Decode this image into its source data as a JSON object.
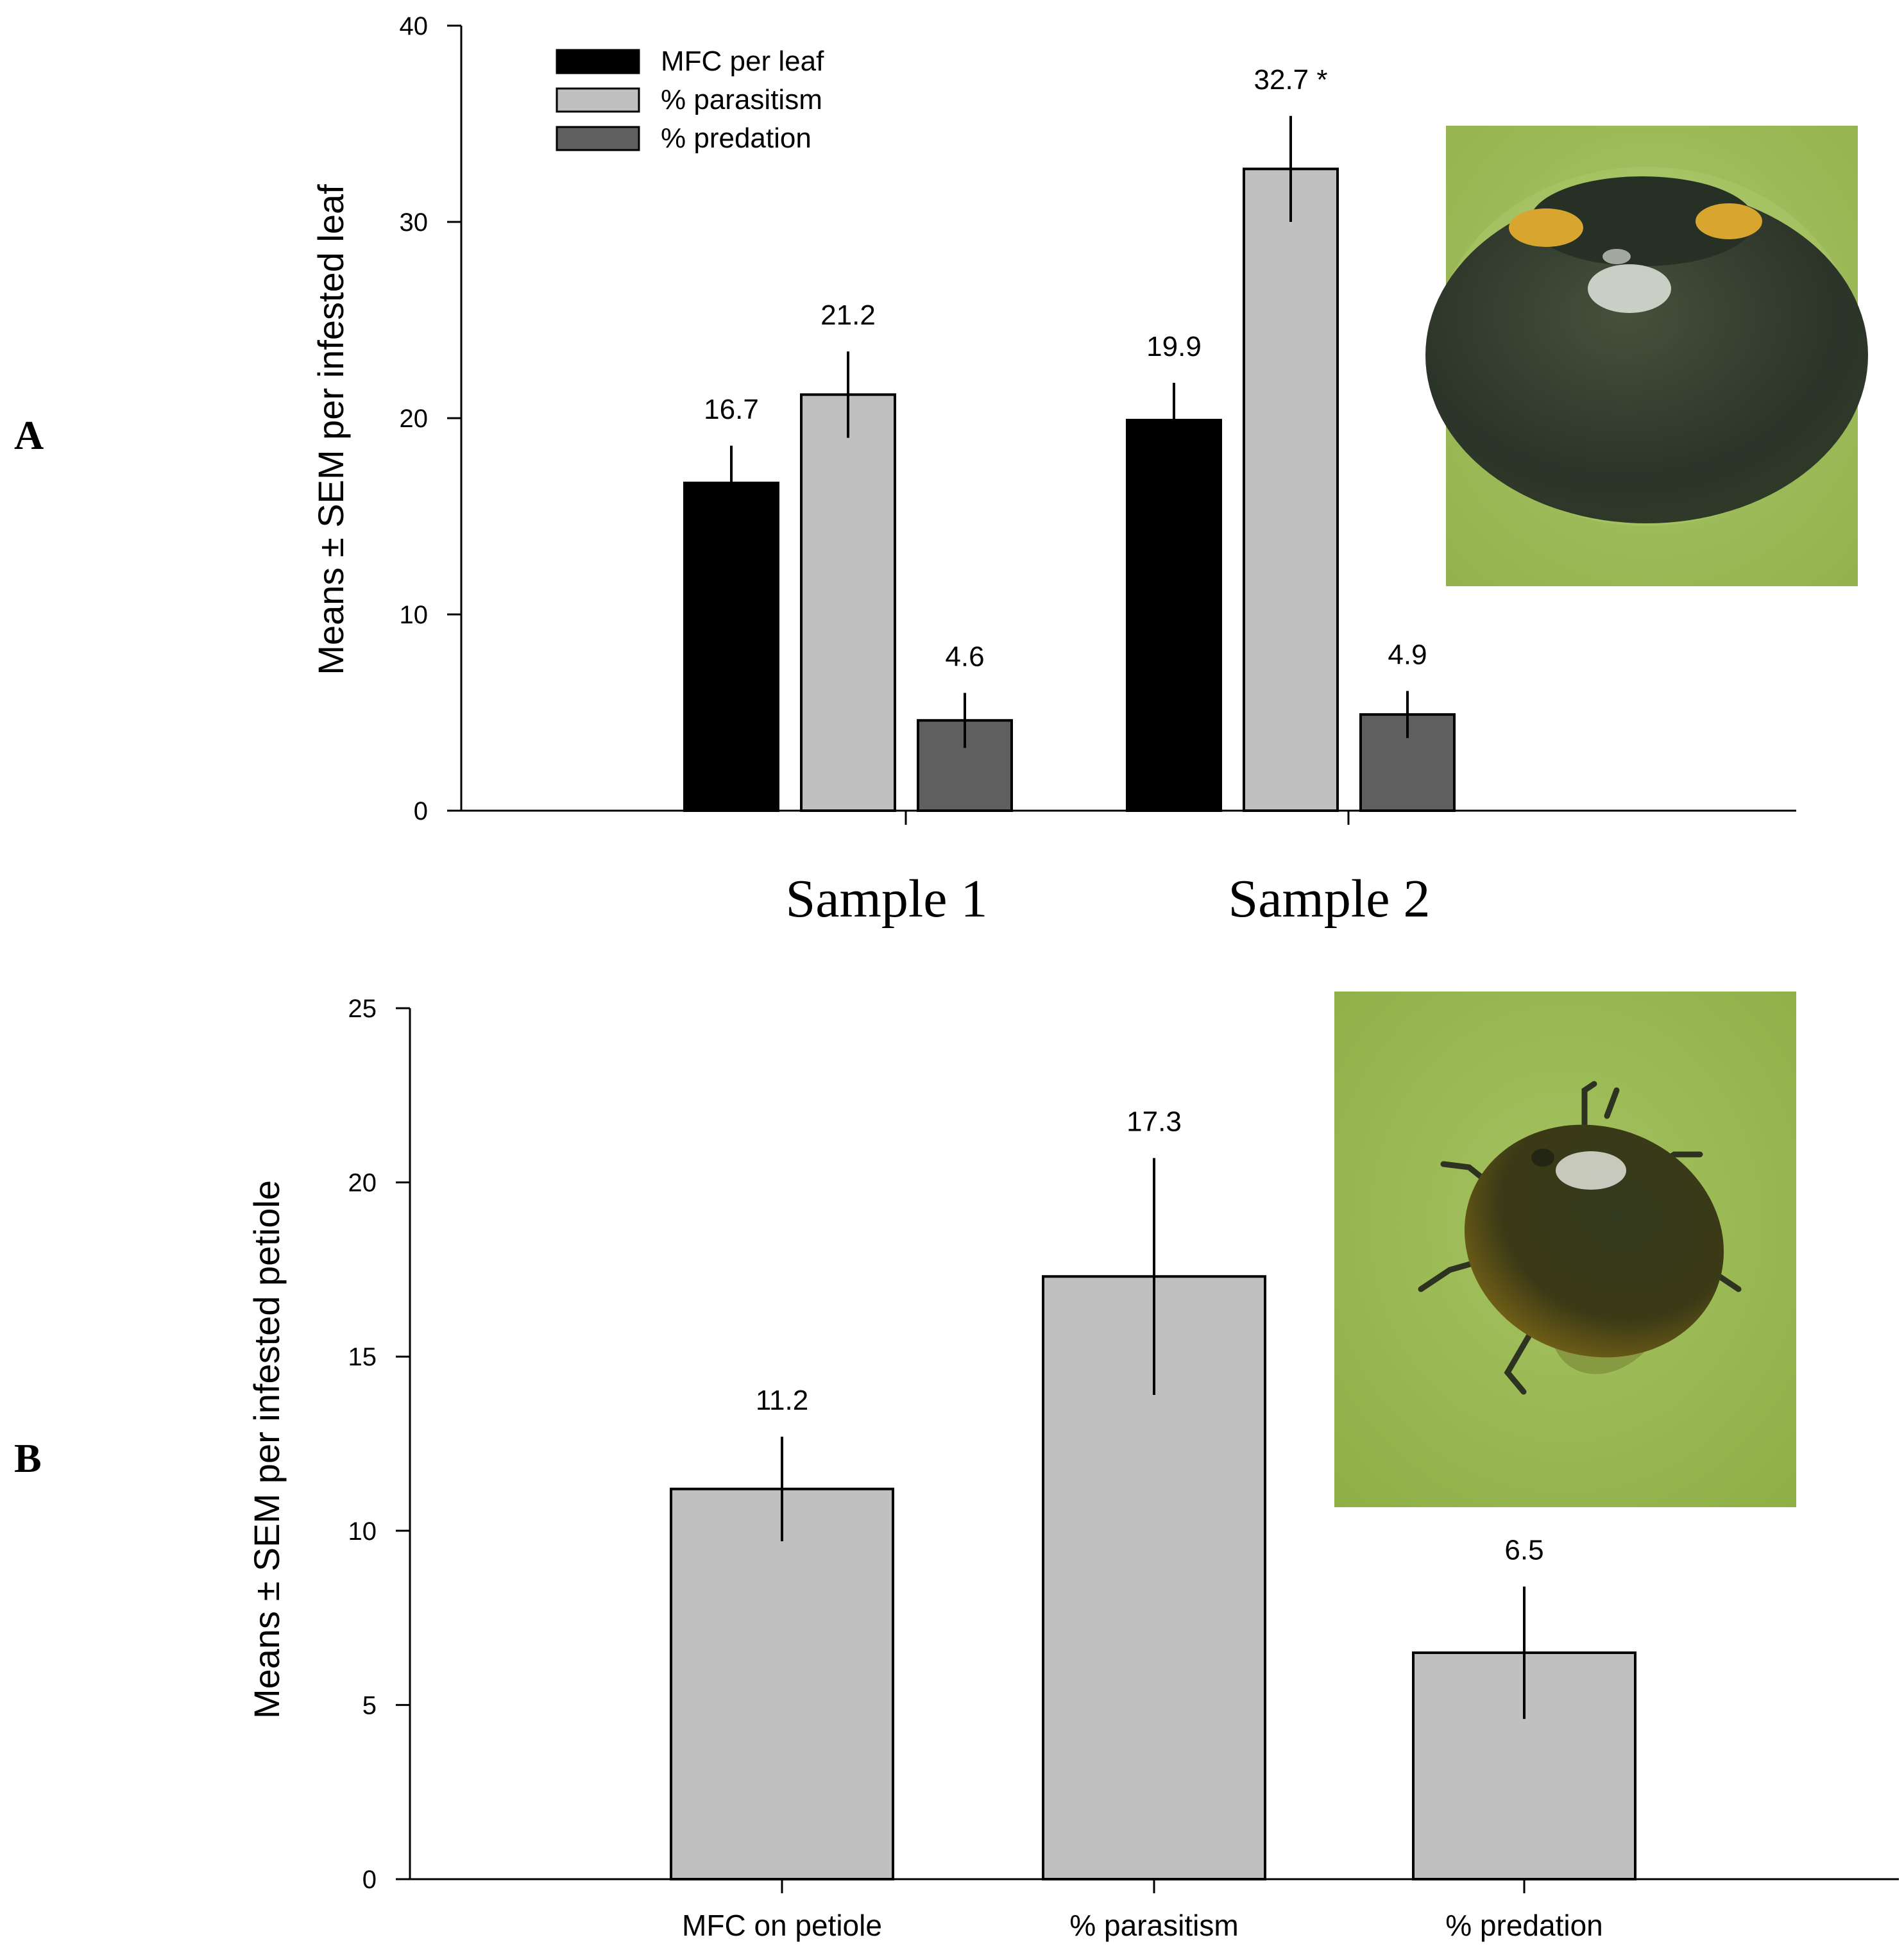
{
  "chart_data": [
    {
      "panel": "A",
      "type": "bar",
      "ylabel": "Means ± SEM per infested leaf",
      "ylim": [
        0,
        40
      ],
      "yticks": [
        0,
        10,
        20,
        30,
        40
      ],
      "categories": [
        "Sample 1",
        "Sample 2"
      ],
      "legend": {
        "placement": "top-left"
      },
      "series": [
        {
          "name": "MFC per leaf",
          "color": "#000000",
          "values": [
            16.7,
            19.9
          ],
          "err": [
            1.9,
            1.9
          ],
          "labels": [
            "16.7",
            "19.9"
          ]
        },
        {
          "name": "% parasitism",
          "color": "#c0c0c0",
          "values": [
            21.2,
            32.7
          ],
          "err": [
            2.2,
            2.7
          ],
          "labels": [
            "21.2",
            "32.7 *"
          ]
        },
        {
          "name": "% predation",
          "color": "#5f5f5f",
          "values": [
            4.6,
            4.9
          ],
          "err": [
            1.4,
            1.2
          ],
          "labels": [
            "4.6",
            "4.9"
          ]
        }
      ],
      "inset_photo": "ladybird-beetle-top-view"
    },
    {
      "panel": "B",
      "type": "bar",
      "ylabel": "Means ± SEM per infested petiole",
      "ylim": [
        0,
        25
      ],
      "yticks": [
        0,
        5,
        10,
        15,
        20,
        25
      ],
      "categories": [
        "MFC on petiole",
        "% parasitism",
        "% predation"
      ],
      "values": [
        11.2,
        17.3,
        6.5
      ],
      "err": [
        1.5,
        3.4,
        1.9
      ],
      "labels": [
        "11.2",
        "17.3",
        "6.5"
      ],
      "color": "#c0c0c0",
      "inset_photo": "ladybird-beetle-with-legs"
    }
  ]
}
